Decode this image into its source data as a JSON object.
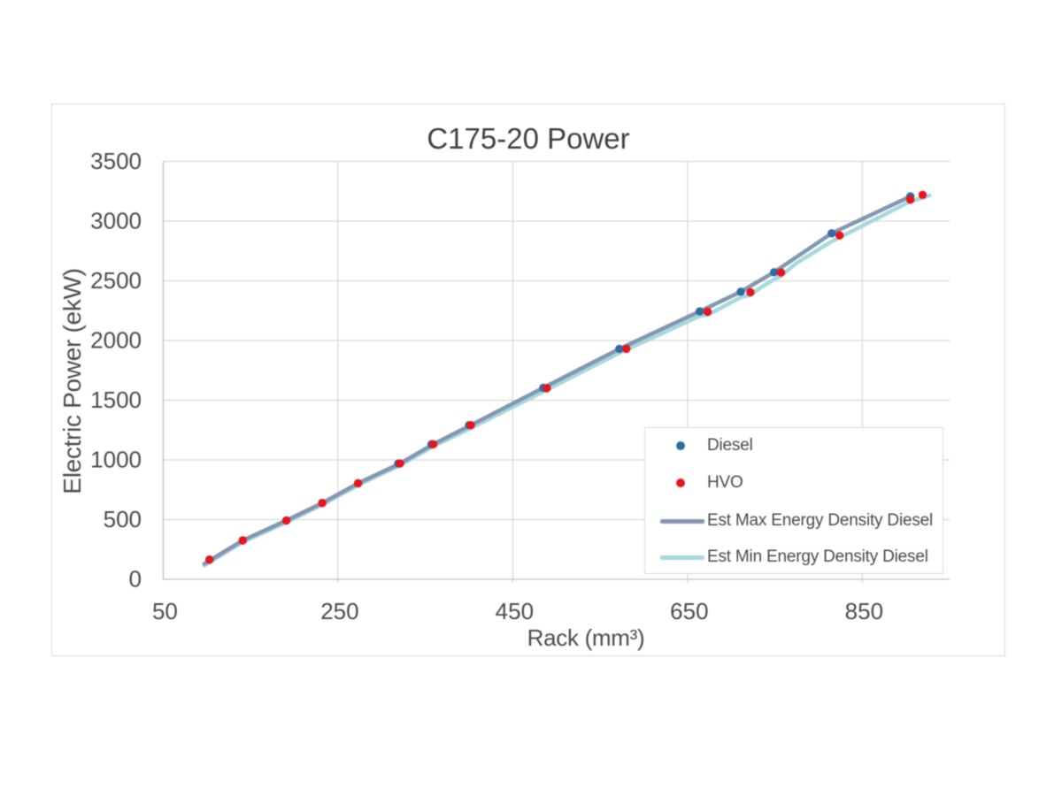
{
  "chart_data": {
    "type": "scatter",
    "title": "C175-20 Power",
    "xlabel": "Rack (mm³)",
    "ylabel": "Electric Power (ekW)",
    "xlim": [
      50,
      950
    ],
    "ylim": [
      0,
      3500
    ],
    "x_ticks": [
      50,
      250,
      450,
      650,
      850
    ],
    "y_ticks": [
      0,
      500,
      1000,
      1500,
      2000,
      2500,
      3000,
      3500
    ],
    "grid": true,
    "legend_position": "inside bottom right",
    "series": [
      {
        "name": "Diesel",
        "kind": "scatter",
        "color": "#2e6da4",
        "marker_radius": 4.7,
        "points": [
          [
            103,
            165
          ],
          [
            141,
            326
          ],
          [
            191,
            493
          ],
          [
            232,
            639
          ],
          [
            273,
            804
          ],
          [
            319,
            970
          ],
          [
            357,
            1131
          ],
          [
            400,
            1291
          ],
          [
            485,
            1604
          ],
          [
            572,
            1930
          ],
          [
            664,
            2244
          ],
          [
            711,
            2409
          ],
          [
            749,
            2572
          ],
          [
            815,
            2898
          ],
          [
            905,
            3207
          ]
        ]
      },
      {
        "name": "HVO",
        "kind": "scatter",
        "color": "#e9141d",
        "marker_radius": 4.7,
        "points": [
          [
            103,
            165
          ],
          [
            141,
            326
          ],
          [
            191,
            493
          ],
          [
            232,
            639
          ],
          [
            273,
            804
          ],
          [
            321,
            970
          ],
          [
            359,
            1131
          ],
          [
            402,
            1291
          ],
          [
            489,
            1601
          ],
          [
            580,
            1930
          ],
          [
            673,
            2241
          ],
          [
            722,
            2404
          ],
          [
            757,
            2570
          ],
          [
            824,
            2880
          ],
          [
            905,
            3179
          ],
          [
            919,
            3220
          ]
        ]
      },
      {
        "name": "Est Max Energy Density Diesel",
        "kind": "line",
        "color": "#8497b0",
        "line_width": 4.5,
        "points": [
          [
            97,
            130
          ],
          [
            141,
            326
          ],
          [
            191,
            493
          ],
          [
            232,
            639
          ],
          [
            273,
            804
          ],
          [
            321,
            970
          ],
          [
            359,
            1131
          ],
          [
            402,
            1291
          ],
          [
            485,
            1604
          ],
          [
            572,
            1930
          ],
          [
            664,
            2244
          ],
          [
            711,
            2409
          ],
          [
            749,
            2572
          ],
          [
            815,
            2898
          ],
          [
            905,
            3207
          ]
        ]
      },
      {
        "name": "Est Min Energy Density Diesel",
        "kind": "line",
        "color": "#a6d8de",
        "line_width": 4.5,
        "points": [
          [
            97,
            115
          ],
          [
            141,
            311
          ],
          [
            191,
            478
          ],
          [
            232,
            624
          ],
          [
            273,
            789
          ],
          [
            321,
            955
          ],
          [
            359,
            1113
          ],
          [
            402,
            1266
          ],
          [
            485,
            1572
          ],
          [
            572,
            1896
          ],
          [
            664,
            2205
          ],
          [
            673,
            2215
          ],
          [
            711,
            2362
          ],
          [
            722,
            2380
          ],
          [
            734,
            2445
          ],
          [
            749,
            2512
          ],
          [
            757,
            2542
          ],
          [
            775,
            2650
          ],
          [
            815,
            2830
          ],
          [
            850,
            2960
          ],
          [
            905,
            3165
          ],
          [
            927,
            3214
          ]
        ]
      }
    ],
    "legend": [
      {
        "label": "Diesel",
        "swatch": "dot",
        "color": "#2e6da4"
      },
      {
        "label": "HVO",
        "swatch": "dot",
        "color": "#e9141d"
      },
      {
        "label": "Est Max Energy Density Diesel",
        "swatch": "line",
        "color": "#8497b0"
      },
      {
        "label": "Est Min Energy Density Diesel",
        "swatch": "line",
        "color": "#a6d8de"
      }
    ],
    "colors": {
      "gridline": "#d9d9d9",
      "axis_line": "#c0c0c0",
      "tick_label": "#4c4c4c",
      "title": "#404040",
      "chart_border": "#d9d9d9",
      "background": "#ffffff"
    }
  }
}
